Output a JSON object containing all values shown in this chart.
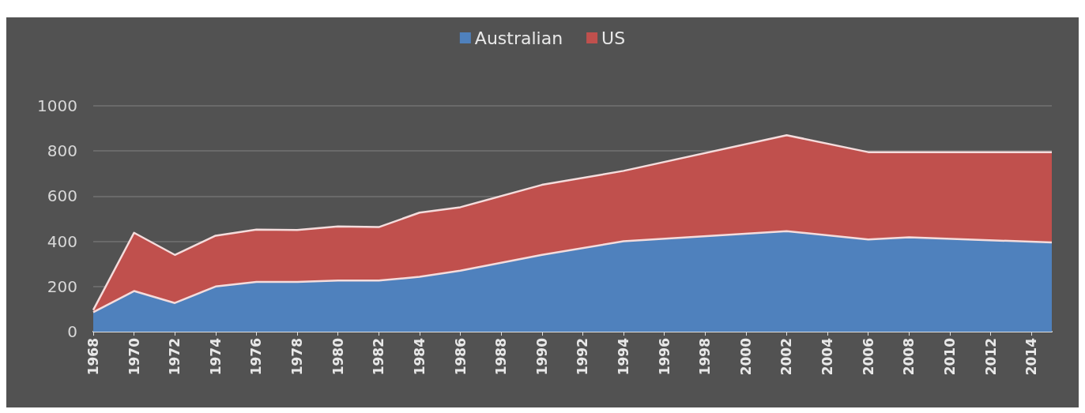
{
  "chart_data": {
    "type": "area",
    "stacked": true,
    "x": [
      1968,
      1970,
      1972,
      1974,
      1976,
      1978,
      1980,
      1982,
      1984,
      1986,
      1990,
      1994,
      2002,
      2006,
      2008,
      2015
    ],
    "series": [
      {
        "name": "Australian",
        "color": "#4f81bd",
        "values": [
          86,
          180,
          127,
          200,
          220,
          220,
          226,
          226,
          243,
          270,
          340,
          400,
          445,
          408,
          418,
          395
        ]
      },
      {
        "name": "US",
        "color": "#c0504d",
        "values": [
          10,
          258,
          213,
          225,
          232,
          230,
          240,
          237,
          284,
          281,
          310,
          312,
          425,
          387,
          377,
          400
        ]
      }
    ],
    "xlim": [
      1968,
      2015
    ],
    "xticks": [
      1968,
      1970,
      1972,
      1974,
      1976,
      1978,
      1980,
      1982,
      1984,
      1986,
      1988,
      1990,
      1992,
      1994,
      1996,
      1998,
      2000,
      2002,
      2004,
      2006,
      2008,
      2010,
      2012,
      2014
    ],
    "ylim": [
      0,
      1000
    ],
    "yticks": [
      0,
      200,
      400,
      600,
      800,
      1000
    ],
    "grid": "y",
    "legend": "top"
  }
}
